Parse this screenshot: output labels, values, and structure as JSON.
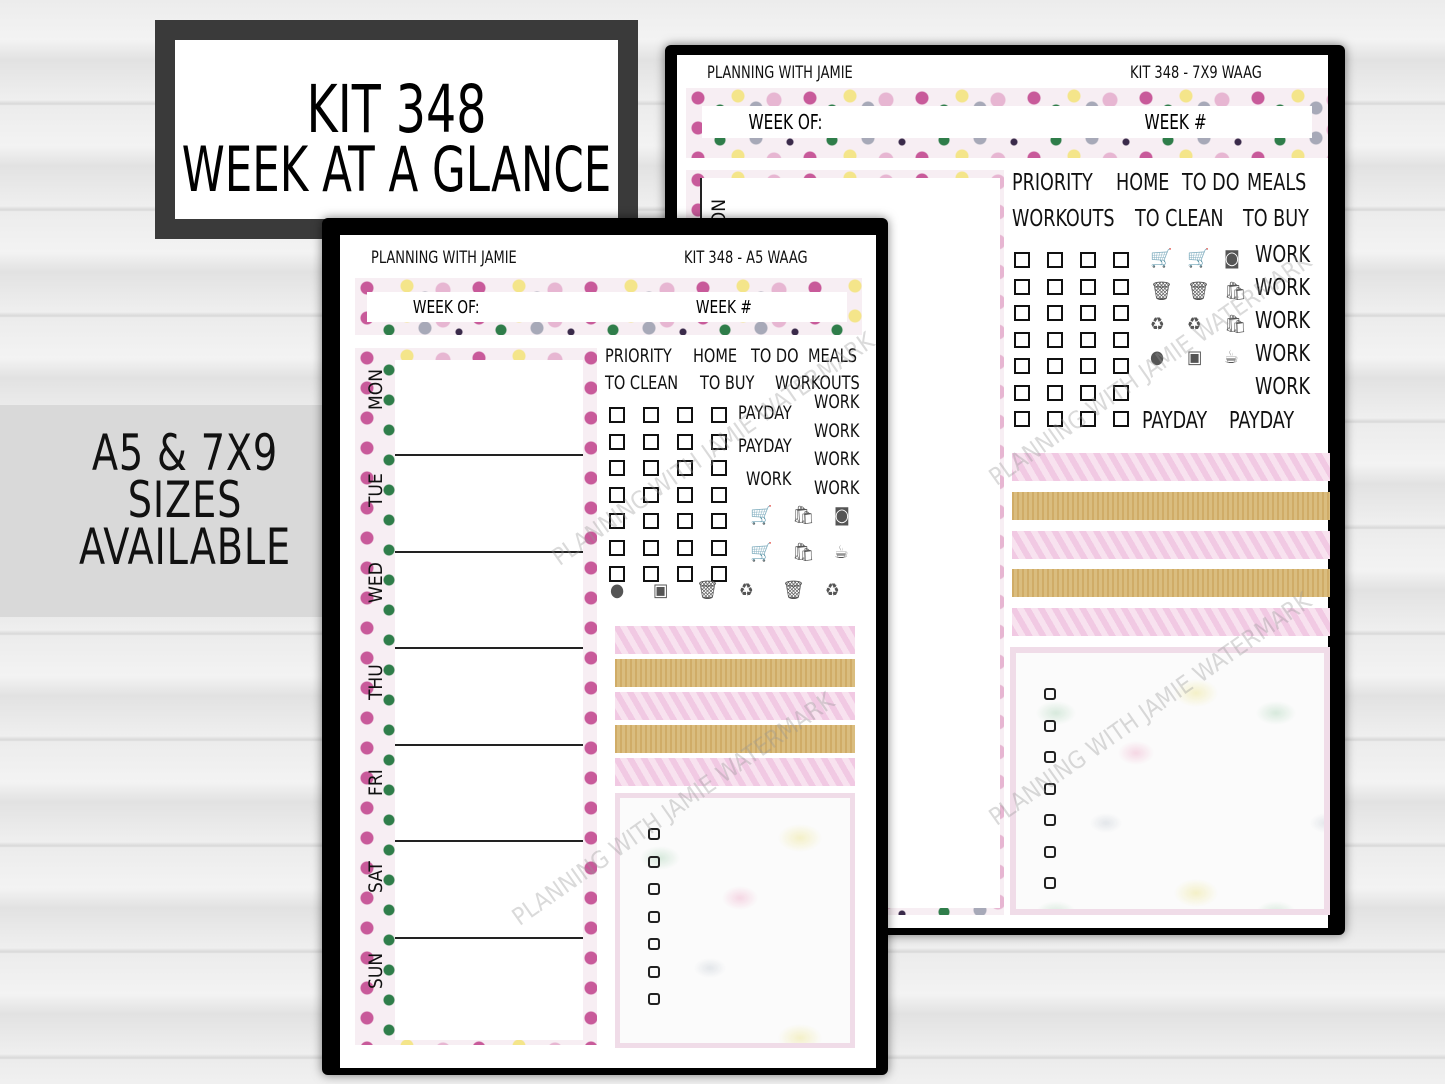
{
  "title_box": {
    "line1": "KIT 348",
    "line2": "WEEK AT A GLANCE"
  },
  "sizes": {
    "line1": "A5 & 7X9",
    "line2": "SIZES",
    "line3": "AVAILABLE"
  },
  "a5": {
    "brand": "PLANNING WITH JAMIE",
    "kit": "KIT 348 - A5 WAAG",
    "week_of": "WEEK OF:",
    "week_num": "WEEK #",
    "days": [
      "MON",
      "TUE",
      "WED",
      "THU",
      "FRI",
      "SAT",
      "SUN"
    ],
    "labels_row1": [
      "PRIORITY",
      "HOME",
      "TO DO",
      "MEALS"
    ],
    "labels_row2": [
      "TO CLEAN",
      "TO BUY",
      "WORKOUTS"
    ],
    "payday_col": [
      "PAYDAY",
      "PAYDAY",
      "WORK"
    ],
    "work_col": [
      "WORK",
      "WORK",
      "WORK",
      "WORK"
    ],
    "icons": [
      "cart-icon",
      "grocery-bag-icon",
      "washing-machine-icon",
      "cart-icon",
      "grocery-bag-icon",
      "coffee-cup-icon",
      "phone-icon",
      "scale-icon",
      "trash-icon",
      "recycle-icon",
      "trash-icon",
      "recycle-icon"
    ],
    "watermark": "PLANNING WITH JAMIE WATERMARK"
  },
  "sevenbynine": {
    "brand": "PLANNING WITH JAMIE",
    "kit": "KIT 348 - 7X9 WAAG",
    "week_of": "WEEK OF:",
    "week_num": "WEEK #",
    "day_visible": "MON",
    "labels_row1": [
      "PRIORITY",
      "HOME",
      "TO DO",
      "MEALS"
    ],
    "labels_row2": [
      "WORKOUTS",
      "TO CLEAN",
      "TO BUY"
    ],
    "work_col": [
      "WORK",
      "WORK",
      "WORK",
      "WORK",
      "WORK"
    ],
    "payday_row": [
      "PAYDAY",
      "PAYDAY"
    ],
    "icons": [
      "cart-icon",
      "cart-icon",
      "washing-machine-icon",
      "trash-icon",
      "trash-icon",
      "grocery-bag-icon",
      "recycle-icon",
      "recycle-icon",
      "grocery-bag-icon",
      "phone-icon",
      "scale-icon",
      "coffee-cup-icon"
    ],
    "watermark": "PLANNING WITH JAMIE WATERMARK"
  },
  "colors": {
    "pink": "#c85a9a",
    "green": "#2f7d4a",
    "yellow": "#f4e58a",
    "frame": "#3a3a3a"
  }
}
